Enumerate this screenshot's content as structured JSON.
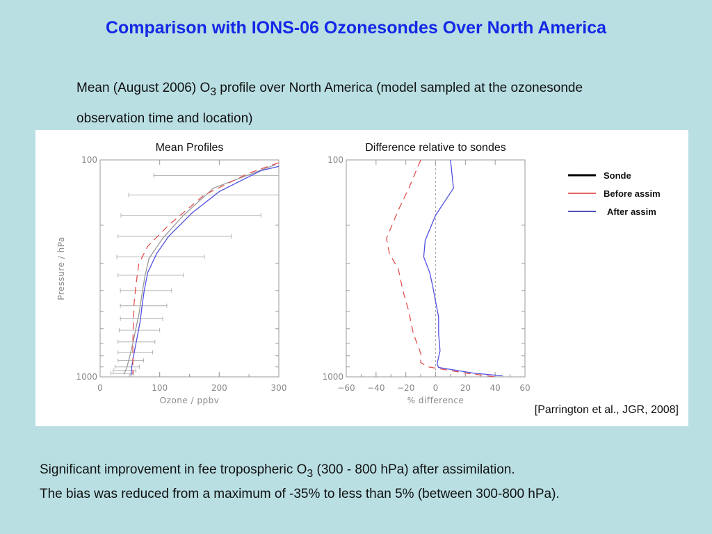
{
  "slide": {
    "title": "Comparison with IONS-06 Ozonesondes Over North America",
    "subtitle_pre": "Mean (August 2006) O",
    "subtitle_sub": "3",
    "subtitle_post": " profile over North America (model sampled at the ozonesonde observation time and location)",
    "citation": "[Parrington et al., JGR, 2008]",
    "conclusion_line1_pre": "Significant improvement in fee tropospheric O",
    "conclusion_line1_sub": "3",
    "conclusion_line1_post": " (300 - 800 hPa) after assimilation.",
    "conclusion_line2": "The bias was reduced from a maximum of -35% to less than 5% (between 300-800 hPa)."
  },
  "legend": [
    {
      "label": "Sonde",
      "color": "#000000",
      "style": "solid"
    },
    {
      "label": "Before assim",
      "color": "#e03030",
      "style": "solid"
    },
    {
      "label": "After assim",
      "color": "#1a1aa8",
      "style": "solid"
    }
  ],
  "chart_data": [
    {
      "type": "line",
      "title": "Mean Profiles",
      "xlabel": "Ozone / ppbv",
      "ylabel": "Pressure / hPa",
      "xlim": [
        0,
        300
      ],
      "ylim": [
        1000,
        100
      ],
      "y_scale": "log",
      "x_ticks": [
        "0",
        "100",
        "200",
        "300"
      ],
      "y_ticks": [
        "100",
        "1000"
      ],
      "series": [
        {
          "name": "Sonde",
          "color": "#9a9a9a",
          "style": "solid",
          "points": [
            [
              295,
              105
            ],
            [
              190,
              135
            ],
            [
              140,
              180
            ],
            [
              105,
              230
            ],
            [
              82,
              285
            ],
            [
              75,
              345
            ],
            [
              70,
              420
            ],
            [
              66,
              500
            ],
            [
              60,
              600
            ],
            [
              55,
              700
            ],
            [
              50,
              800
            ],
            [
              45,
              900
            ],
            [
              40,
              975
            ]
          ],
          "error_bars": [
            {
              "y": 118,
              "lo": 90,
              "hi": 300
            },
            {
              "y": 145,
              "lo": 48,
              "hi": 300
            },
            {
              "y": 180,
              "lo": 35,
              "hi": 270
            },
            {
              "y": 225,
              "lo": 30,
              "hi": 220
            },
            {
              "y": 280,
              "lo": 28,
              "hi": 175
            },
            {
              "y": 340,
              "lo": 30,
              "hi": 140
            },
            {
              "y": 400,
              "lo": 34,
              "hi": 120
            },
            {
              "y": 470,
              "lo": 34,
              "hi": 112
            },
            {
              "y": 540,
              "lo": 34,
              "hi": 105
            },
            {
              "y": 610,
              "lo": 32,
              "hi": 100
            },
            {
              "y": 690,
              "lo": 30,
              "hi": 92
            },
            {
              "y": 770,
              "lo": 30,
              "hi": 88
            },
            {
              "y": 840,
              "lo": 30,
              "hi": 73
            },
            {
              "y": 900,
              "lo": 25,
              "hi": 66
            },
            {
              "y": 935,
              "lo": 22,
              "hi": 60
            },
            {
              "y": 965,
              "lo": 18,
              "hi": 56
            }
          ]
        },
        {
          "name": "After assim",
          "color": "#5050e0",
          "style": "solid",
          "points": [
            [
              300,
              107
            ],
            [
              270,
              112
            ],
            [
              200,
              140
            ],
            [
              155,
              175
            ],
            [
              115,
              225
            ],
            [
              95,
              270
            ],
            [
              80,
              330
            ],
            [
              74,
              400
            ],
            [
              70,
              480
            ],
            [
              67,
              560
            ],
            [
              62,
              660
            ],
            [
              57,
              780
            ],
            [
              53,
              900
            ],
            [
              52,
              985
            ]
          ]
        },
        {
          "name": "Before assim",
          "color": "#e05050",
          "style": "dashed",
          "points": [
            [
              300,
              103
            ],
            [
              250,
              115
            ],
            [
              175,
              145
            ],
            [
              115,
              200
            ],
            [
              80,
              250
            ],
            [
              65,
              300
            ],
            [
              60,
              380
            ],
            [
              57,
              460
            ],
            [
              56,
              560
            ],
            [
              55,
              680
            ],
            [
              55,
              800
            ],
            [
              55,
              920
            ],
            [
              55,
              975
            ]
          ]
        }
      ]
    },
    {
      "type": "line",
      "title": "Difference relative to sondes",
      "xlabel": "% difference",
      "xlim": [
        -60,
        60
      ],
      "ylim": [
        1000,
        100
      ],
      "y_scale": "log",
      "x_ticks": [
        "−60",
        "−40",
        "−20",
        "0",
        "20",
        "40",
        "60"
      ],
      "y_ticks": [
        "100",
        "1000"
      ],
      "series": [
        {
          "name": "Zero line",
          "color": "#aaaaaa",
          "style": "dotted",
          "points": [
            [
              0,
              100
            ],
            [
              0,
              1000
            ]
          ]
        },
        {
          "name": "After assim",
          "color": "#5050e0",
          "style": "solid",
          "points": [
            [
              10,
              100
            ],
            [
              12,
              135
            ],
            [
              0,
              180
            ],
            [
              -7,
              235
            ],
            [
              -8,
              280
            ],
            [
              -4,
              330
            ],
            [
              -2,
              380
            ],
            [
              0,
              450
            ],
            [
              2,
              530
            ],
            [
              2,
              630
            ],
            [
              3,
              760
            ],
            [
              1,
              870
            ],
            [
              2,
              905
            ],
            [
              25,
              960
            ],
            [
              45,
              990
            ]
          ]
        },
        {
          "name": "Before assim",
          "color": "#e05050",
          "style": "dashed",
          "points": [
            [
              -10,
              100
            ],
            [
              -18,
              135
            ],
            [
              -25,
              170
            ],
            [
              -33,
              230
            ],
            [
              -31,
              270
            ],
            [
              -25,
              320
            ],
            [
              -22,
              400
            ],
            [
              -18,
              500
            ],
            [
              -15,
              630
            ],
            [
              -10,
              780
            ],
            [
              -10,
              860
            ],
            [
              -5,
              900
            ],
            [
              20,
              960
            ],
            [
              40,
              1000
            ]
          ]
        }
      ]
    }
  ]
}
